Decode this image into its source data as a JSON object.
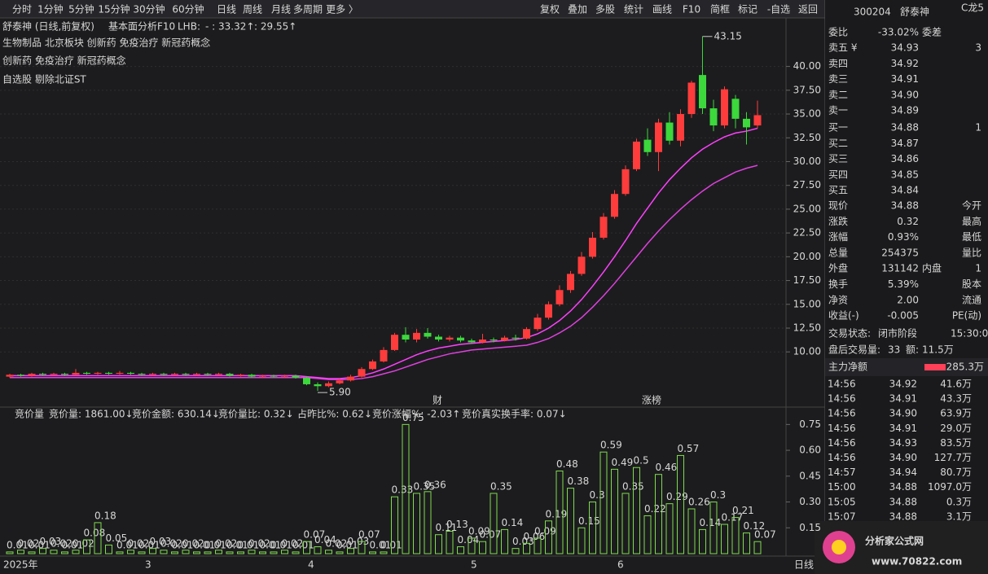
{
  "toolbar": {
    "left": [
      "分时",
      "1分钟",
      "5分钟",
      "15分钟",
      "30分钟",
      "60分钟",
      "日线",
      "周线",
      "月线",
      "多周期",
      "更多 〉"
    ],
    "right": [
      "复权",
      "叠加",
      "多股",
      "统计",
      "画线",
      "F10",
      "简框",
      "标记",
      "-自选",
      "返回"
    ]
  },
  "header": {
    "stock": "舒泰神 (日线,前复权)",
    "f10": "基本面分析F10",
    "lhb": "LHB:",
    "lhb1": "- : 33.32↑",
    "lhb2": ": 29.55↑",
    "concepts": "生物制品 北京板块 创新药 免疫治疗 新冠药概念",
    "concepts2": "创新药 免疫治疗 新冠药概念",
    "tags": "自选股 剔除北证ST"
  },
  "annotations": {
    "high_label": "43.15",
    "low_label": "5.90",
    "markers": [
      "财",
      "涨榜"
    ]
  },
  "lower_header": [
    "竞价量",
    "竞价量: 1861.00↓",
    "竞价金额: 630.14↓",
    "竞价量比: 0.32↓",
    "占昨比%: 0.62↓",
    "竞价涨幅%: -2.03↑",
    "竞价真实换手率: 0.07↓"
  ],
  "x_axis": {
    "labels": [
      "2025年",
      "3",
      "4",
      "5",
      "6"
    ],
    "period": "日线"
  },
  "chart_data": [
    {
      "type": "candlestick",
      "up_color": "#ff3c3c",
      "down_color": "#3cd83c",
      "ylim": [
        4.2,
        45.1
      ],
      "yticks": [
        {
          "value": 10,
          "label": "10.00"
        },
        {
          "value": 12.5,
          "label": "12.50"
        },
        {
          "value": 15,
          "label": "15.00"
        },
        {
          "value": 17.5,
          "label": "17.50"
        },
        {
          "value": 20,
          "label": "20.00"
        },
        {
          "value": 22.5,
          "label": "22.50"
        },
        {
          "value": 25,
          "label": "25.00"
        },
        {
          "value": 27.5,
          "label": "27.50"
        },
        {
          "value": 30,
          "label": "30.00"
        },
        {
          "value": 32.5,
          "label": "32.50"
        },
        {
          "value": 35,
          "label": "35.00"
        },
        {
          "value": 37.5,
          "label": "37.50"
        },
        {
          "value": 40,
          "label": "40.00"
        }
      ],
      "grid": true,
      "candles": [
        [
          7.4,
          7.6,
          7.7,
          7.3
        ],
        [
          7.6,
          7.5,
          7.7,
          7.4
        ],
        [
          7.5,
          7.7,
          7.8,
          7.4
        ],
        [
          7.7,
          7.6,
          7.8,
          7.5
        ],
        [
          7.6,
          7.7,
          7.8,
          7.5
        ],
        [
          7.7,
          7.6,
          7.8,
          7.5
        ],
        [
          7.6,
          7.8,
          8.2,
          7.5
        ],
        [
          7.8,
          7.7,
          7.9,
          7.6
        ],
        [
          7.7,
          7.8,
          7.9,
          7.6
        ],
        [
          7.8,
          7.7,
          7.9,
          7.6
        ],
        [
          7.7,
          7.8,
          8.0,
          7.6
        ],
        [
          7.8,
          7.7,
          7.9,
          7.6
        ],
        [
          7.7,
          7.6,
          7.8,
          7.5
        ],
        [
          7.6,
          7.7,
          7.8,
          7.5
        ],
        [
          7.7,
          7.6,
          7.8,
          7.5
        ],
        [
          7.6,
          7.7,
          7.8,
          7.5
        ],
        [
          7.7,
          7.6,
          7.8,
          7.5
        ],
        [
          7.6,
          7.7,
          7.8,
          7.5
        ],
        [
          7.7,
          7.6,
          7.8,
          7.5
        ],
        [
          7.6,
          7.7,
          7.8,
          7.5
        ],
        [
          7.7,
          7.5,
          7.8,
          7.4
        ],
        [
          7.5,
          7.6,
          7.7,
          7.4
        ],
        [
          7.6,
          7.4,
          7.7,
          7.3
        ],
        [
          7.4,
          7.5,
          7.6,
          7.3
        ],
        [
          7.5,
          7.4,
          7.6,
          7.3
        ],
        [
          7.4,
          7.5,
          7.6,
          7.3
        ],
        [
          7.5,
          7.3,
          7.6,
          7.2
        ],
        [
          7.3,
          6.6,
          7.4,
          6.5
        ],
        [
          6.6,
          6.4,
          6.8,
          5.9
        ],
        [
          6.4,
          6.7,
          6.9,
          6.3
        ],
        [
          6.7,
          7.0,
          7.2,
          6.6
        ],
        [
          7.0,
          7.4,
          7.6,
          6.9
        ],
        [
          7.4,
          8.2,
          8.4,
          7.3
        ],
        [
          8.2,
          9.0,
          9.2,
          8.1
        ],
        [
          9.0,
          10.2,
          10.5,
          8.9
        ],
        [
          10.2,
          11.8,
          12.0,
          10.1
        ],
        [
          11.8,
          11.3,
          12.6,
          11.0
        ],
        [
          11.3,
          12.0,
          12.4,
          11.0
        ],
        [
          12.0,
          11.6,
          12.5,
          11.4
        ],
        [
          11.6,
          11.3,
          11.8,
          11.1
        ],
        [
          11.3,
          11.5,
          11.7,
          11.1
        ],
        [
          11.5,
          11.2,
          11.7,
          11.0
        ],
        [
          11.2,
          11.0,
          11.4,
          10.9
        ],
        [
          11.0,
          11.3,
          11.9,
          10.9
        ],
        [
          11.3,
          11.2,
          11.5,
          11.0
        ],
        [
          11.2,
          11.5,
          11.7,
          11.1
        ],
        [
          11.5,
          11.4,
          11.8,
          11.2
        ],
        [
          11.4,
          12.4,
          12.6,
          11.3
        ],
        [
          12.4,
          13.6,
          14.0,
          12.2
        ],
        [
          13.6,
          15.0,
          15.3,
          13.4
        ],
        [
          15.0,
          16.5,
          17.0,
          14.8
        ],
        [
          16.5,
          18.2,
          18.5,
          16.2
        ],
        [
          18.2,
          20.0,
          20.5,
          18.0
        ],
        [
          20.0,
          22.0,
          22.6,
          19.8
        ],
        [
          22.0,
          24.2,
          24.6,
          21.8
        ],
        [
          24.2,
          26.6,
          27.0,
          24.0
        ],
        [
          26.6,
          29.2,
          29.6,
          26.4
        ],
        [
          29.2,
          32.1,
          32.4,
          29.0
        ],
        [
          32.3,
          31.0,
          33.5,
          30.6
        ],
        [
          31.0,
          34.1,
          34.5,
          29.0
        ],
        [
          34.1,
          32.2,
          35.2,
          31.8
        ],
        [
          32.2,
          35.0,
          35.5,
          31.6
        ],
        [
          35.0,
          38.3,
          38.5,
          34.6
        ],
        [
          39.1,
          35.6,
          43.15,
          35.0
        ],
        [
          35.6,
          33.8,
          36.5,
          33.2
        ],
        [
          33.8,
          37.6,
          37.9,
          33.5
        ],
        [
          36.6,
          34.5,
          37.0,
          33.5
        ],
        [
          34.5,
          33.6,
          35.2,
          31.8
        ],
        [
          33.8,
          34.88,
          36.4,
          33.5
        ]
      ],
      "lines": [
        {
          "color": "#ff40ff",
          "values": [
            7.5,
            7.5,
            7.5,
            7.5,
            7.5,
            7.5,
            7.5,
            7.5,
            7.5,
            7.5,
            7.5,
            7.5,
            7.5,
            7.5,
            7.5,
            7.5,
            7.5,
            7.5,
            7.5,
            7.5,
            7.5,
            7.5,
            7.5,
            7.5,
            7.5,
            7.5,
            7.5,
            7.4,
            7.3,
            7.2,
            7.2,
            7.3,
            7.5,
            7.8,
            8.2,
            8.7,
            9.2,
            9.7,
            10.1,
            10.4,
            10.6,
            10.8,
            10.9,
            11.0,
            11.1,
            11.2,
            11.3,
            11.5,
            11.9,
            12.5,
            13.3,
            14.3,
            15.5,
            16.9,
            18.4,
            20.0,
            21.7,
            23.5,
            25.1,
            26.7,
            28.1,
            29.3,
            30.4,
            31.3,
            32.0,
            32.6,
            33.0,
            33.2,
            33.5
          ]
        },
        {
          "color": "#e040e0",
          "values": [
            7.3,
            7.3,
            7.3,
            7.3,
            7.3,
            7.3,
            7.3,
            7.3,
            7.3,
            7.3,
            7.3,
            7.3,
            7.3,
            7.3,
            7.3,
            7.3,
            7.3,
            7.3,
            7.3,
            7.3,
            7.3,
            7.3,
            7.3,
            7.3,
            7.3,
            7.3,
            7.3,
            7.3,
            7.2,
            7.1,
            7.1,
            7.1,
            7.2,
            7.4,
            7.7,
            8.0,
            8.4,
            8.8,
            9.2,
            9.5,
            9.8,
            10.0,
            10.2,
            10.3,
            10.4,
            10.5,
            10.6,
            10.7,
            11.0,
            11.4,
            12.0,
            12.7,
            13.6,
            14.7,
            15.9,
            17.2,
            18.6,
            20.0,
            21.4,
            22.7,
            23.9,
            25.0,
            26.0,
            26.9,
            27.7,
            28.3,
            28.9,
            29.3,
            29.6
          ]
        }
      ]
    },
    {
      "type": "bar",
      "color": "#7fdc4f",
      "label_color": "#e6e64c",
      "ylim": [
        0,
        0.78
      ],
      "yticks": [
        0.15,
        {
          "value": 0.3,
          "label": "0.30"
        },
        0.45,
        {
          "value": 0.6,
          "label": "0.60"
        },
        0.75
      ],
      "values": [
        0.01,
        0.02,
        0.01,
        0.03,
        0.02,
        0.01,
        0.02,
        0.08,
        0.18,
        0.05,
        0.01,
        0.02,
        0.01,
        0.03,
        0.02,
        0.01,
        0.02,
        0.01,
        0.01,
        0.02,
        0.01,
        0.01,
        0.02,
        0.01,
        0.01,
        0.02,
        0.01,
        0.07,
        0.04,
        0.02,
        0.01,
        0.03,
        0.07,
        0.01,
        0.01,
        0.33,
        0.75,
        0.35,
        0.36,
        0.11,
        0.13,
        0.04,
        0.09,
        0.07,
        0.35,
        0.14,
        0.03,
        0.06,
        0.09,
        0.19,
        0.48,
        0.38,
        0.15,
        0.3,
        0.59,
        0.49,
        0.35,
        0.5,
        0.22,
        0.46,
        0.29,
        0.57,
        0.26,
        0.14,
        0.3,
        0.17,
        0.21,
        0.12,
        0.07
      ]
    }
  ],
  "quote": {
    "code": "300204",
    "name": "舒泰神",
    "badge": "C龙5",
    "ratio": [
      "委比",
      "-33.02%",
      "委差"
    ],
    "asks": [
      [
        "卖五 ¥",
        "34.93",
        "3"
      ],
      [
        "卖四",
        "34.92"
      ],
      [
        "卖三",
        "34.91"
      ],
      [
        "卖二",
        "34.90"
      ],
      [
        "卖一",
        "34.89"
      ]
    ],
    "bids": [
      [
        "买一",
        "34.88",
        "1"
      ],
      [
        "买二",
        "34.87"
      ],
      [
        "买三",
        "34.86"
      ],
      [
        "买四",
        "34.85"
      ],
      [
        "买五",
        "34.84"
      ]
    ],
    "stats": [
      [
        "现价",
        "34.88",
        "今开"
      ],
      [
        "涨跌",
        "0.32",
        "最高"
      ],
      [
        "涨幅",
        "0.93%",
        "最低"
      ],
      [
        "总量",
        "254375",
        "量比"
      ],
      [
        "外盘",
        "131142",
        "内盘",
        "1"
      ],
      [
        "换手",
        "5.39%",
        "股本"
      ],
      [
        "净资",
        "2.00",
        "流通"
      ],
      [
        "收益(-)",
        "-0.005",
        "PE(动)"
      ]
    ],
    "status": [
      "交易状态:",
      "闭市阶段",
      "15:30:00"
    ],
    "after": [
      "盘后交易量:",
      "33",
      "额:",
      "11.5万"
    ],
    "main_net": [
      "主力净额",
      "285.3万"
    ],
    "ticks": [
      [
        "14:56",
        "34.92",
        "41.6万"
      ],
      [
        "14:56",
        "34.91",
        "43.3万"
      ],
      [
        "14:56",
        "34.90",
        "63.9万"
      ],
      [
        "14:56",
        "34.91",
        "29.0万"
      ],
      [
        "14:56",
        "34.93",
        "83.5万"
      ],
      [
        "14:56",
        "34.90",
        "127.7万"
      ],
      [
        "14:57",
        "34.94",
        "80.7万"
      ],
      [
        "15:00",
        "34.88",
        "1097.0万"
      ],
      [
        "15:05",
        "34.88",
        "0.3万"
      ],
      [
        "15:07",
        "34.88",
        "3.1万"
      ]
    ]
  },
  "logo": {
    "text": "分析家公式网",
    "url": "www.70822.com"
  }
}
